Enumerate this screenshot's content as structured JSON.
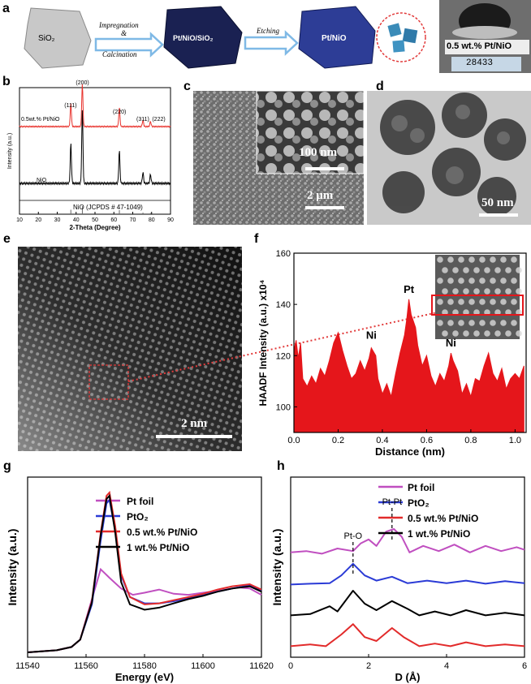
{
  "panels": {
    "a": {
      "label": "a",
      "sio2": "SiO₂",
      "step1a": "Impregnation",
      "step1b": "&",
      "step1c": "Calcination",
      "mid": "Pt/NiO/SiO₂",
      "step2": "Etching",
      "product": "Pt/NiO",
      "photo_label": "0.5 wt.% Pt/NiO",
      "scale_reading": "28433"
    },
    "b": {
      "label": "b"
    },
    "c": {
      "label": "c",
      "scale_big": "2 μm",
      "scale_inset": "100 nm"
    },
    "d": {
      "label": "d",
      "scale": "50 nm"
    },
    "e": {
      "label": "e",
      "scale": "2 nm"
    },
    "f": {
      "label": "f"
    },
    "g": {
      "label": "g"
    },
    "h": {
      "label": "h"
    }
  },
  "chart_data": [
    {
      "panel": "b",
      "type": "line",
      "xlabel": "2-Theta (Degree)",
      "ylabel": "Intensity (a.u.)",
      "xlim": [
        10,
        90
      ],
      "xticks": [
        10,
        20,
        30,
        40,
        50,
        60,
        70,
        80,
        90
      ],
      "series": [
        {
          "name": "0.5wt.% Pt/NiO",
          "color": "#e8322c",
          "peaks": [
            [
              37.2,
              0.55
            ],
            [
              43.3,
              1.0
            ],
            [
              62.9,
              0.45
            ],
            [
              75.4,
              0.15
            ],
            [
              79.4,
              0.12
            ]
          ]
        },
        {
          "name": "NiO",
          "color": "#000000",
          "peaks": [
            [
              37.2,
              0.55
            ],
            [
              43.3,
              1.0
            ],
            [
              62.9,
              0.45
            ],
            [
              75.4,
              0.15
            ],
            [
              79.4,
              0.12
            ]
          ]
        }
      ],
      "peak_labels": [
        "(111)",
        "(200)",
        "(220)",
        "(311)",
        "(222)"
      ],
      "reference": {
        "label": "NiO (JCPDS # 47-1049)",
        "lines": [
          37.2,
          43.3,
          62.9,
          75.4,
          79.4
        ],
        "heights": [
          0.55,
          1.0,
          0.5,
          0.2,
          0.15
        ]
      }
    },
    {
      "panel": "f",
      "type": "area",
      "xlabel": "Distance (nm)",
      "ylabel": "HAADF Intensity (a.u.) x10⁴",
      "xlim": [
        0,
        1.05
      ],
      "ylim": [
        90,
        160
      ],
      "xticks": [
        0.0,
        0.2,
        0.4,
        0.6,
        0.8,
        1.0
      ],
      "yticks": [
        100,
        120,
        140,
        160
      ],
      "color": "#e5161b",
      "annotations": [
        {
          "text": "Pt",
          "x": 0.52,
          "y": 142
        },
        {
          "text": "Ni",
          "x": 0.35,
          "y": 124
        },
        {
          "text": "Ni",
          "x": 0.71,
          "y": 121
        }
      ],
      "profile": [
        [
          0,
          122
        ],
        [
          0.01,
          126
        ],
        [
          0.02,
          119
        ],
        [
          0.03,
          125
        ],
        [
          0.04,
          111
        ],
        [
          0.06,
          108
        ],
        [
          0.08,
          112
        ],
        [
          0.1,
          109
        ],
        [
          0.12,
          115
        ],
        [
          0.14,
          112
        ],
        [
          0.16,
          118
        ],
        [
          0.18,
          125
        ],
        [
          0.2,
          129
        ],
        [
          0.22,
          122
        ],
        [
          0.24,
          116
        ],
        [
          0.26,
          111
        ],
        [
          0.28,
          113
        ],
        [
          0.3,
          118
        ],
        [
          0.32,
          114
        ],
        [
          0.34,
          119
        ],
        [
          0.35,
          123
        ],
        [
          0.37,
          120
        ],
        [
          0.38,
          111
        ],
        [
          0.4,
          105
        ],
        [
          0.42,
          109
        ],
        [
          0.44,
          104
        ],
        [
          0.46,
          113
        ],
        [
          0.48,
          121
        ],
        [
          0.5,
          128
        ],
        [
          0.51,
          134
        ],
        [
          0.52,
          142
        ],
        [
          0.53,
          136
        ],
        [
          0.55,
          131
        ],
        [
          0.56,
          124
        ],
        [
          0.58,
          116
        ],
        [
          0.6,
          120
        ],
        [
          0.62,
          112
        ],
        [
          0.64,
          108
        ],
        [
          0.66,
          113
        ],
        [
          0.68,
          110
        ],
        [
          0.7,
          116
        ],
        [
          0.71,
          121
        ],
        [
          0.72,
          118
        ],
        [
          0.74,
          114
        ],
        [
          0.76,
          105
        ],
        [
          0.78,
          109
        ],
        [
          0.8,
          104
        ],
        [
          0.82,
          111
        ],
        [
          0.84,
          110
        ],
        [
          0.86,
          116
        ],
        [
          0.88,
          121
        ],
        [
          0.89,
          117
        ],
        [
          0.9,
          113
        ],
        [
          0.92,
          110
        ],
        [
          0.94,
          115
        ],
        [
          0.96,
          107
        ],
        [
          0.98,
          111
        ],
        [
          1.0,
          113
        ],
        [
          1.02,
          111
        ],
        [
          1.04,
          116
        ]
      ]
    },
    {
      "panel": "g",
      "type": "line",
      "xlabel": "Energy (eV)",
      "ylabel": "Intensity (a.u.)",
      "xlim": [
        11540,
        11620
      ],
      "ylim": [
        0,
        1.6
      ],
      "xticks": [
        11540,
        11560,
        11580,
        11600,
        11620
      ],
      "series": [
        {
          "name": "Pt foil",
          "color": "#c04fc0",
          "points": [
            [
              11540,
              0.0
            ],
            [
              11550,
              0.02
            ],
            [
              11555,
              0.05
            ],
            [
              11558,
              0.12
            ],
            [
              11562,
              0.5
            ],
            [
              11565,
              0.78
            ],
            [
              11568,
              0.7
            ],
            [
              11572,
              0.6
            ],
            [
              11576,
              0.54
            ],
            [
              11580,
              0.56
            ],
            [
              11585,
              0.59
            ],
            [
              11590,
              0.55
            ],
            [
              11595,
              0.54
            ],
            [
              11600,
              0.56
            ],
            [
              11606,
              0.58
            ],
            [
              11612,
              0.61
            ],
            [
              11616,
              0.6
            ],
            [
              11620,
              0.54
            ]
          ]
        },
        {
          "name": "PtO₂",
          "color": "#2b3bd6",
          "points": [
            [
              11540,
              0.0
            ],
            [
              11550,
              0.02
            ],
            [
              11555,
              0.05
            ],
            [
              11558,
              0.12
            ],
            [
              11562,
              0.45
            ],
            [
              11565,
              1.05
            ],
            [
              11567,
              1.4
            ],
            [
              11568,
              1.43
            ],
            [
              11570,
              1.15
            ],
            [
              11572,
              0.72
            ],
            [
              11575,
              0.52
            ],
            [
              11580,
              0.46
            ],
            [
              11585,
              0.46
            ],
            [
              11590,
              0.48
            ],
            [
              11595,
              0.51
            ],
            [
              11600,
              0.54
            ],
            [
              11605,
              0.57
            ],
            [
              11610,
              0.6
            ],
            [
              11616,
              0.63
            ],
            [
              11620,
              0.58
            ]
          ]
        },
        {
          "name": "0.5 wt.% Pt/NiO",
          "color": "#e22b2b",
          "points": [
            [
              11540,
              0.0
            ],
            [
              11550,
              0.02
            ],
            [
              11555,
              0.05
            ],
            [
              11558,
              0.12
            ],
            [
              11562,
              0.48
            ],
            [
              11565,
              1.12
            ],
            [
              11567,
              1.47
            ],
            [
              11568,
              1.5
            ],
            [
              11570,
              1.18
            ],
            [
              11572,
              0.74
            ],
            [
              11575,
              0.52
            ],
            [
              11580,
              0.45
            ],
            [
              11585,
              0.46
            ],
            [
              11590,
              0.49
            ],
            [
              11595,
              0.52
            ],
            [
              11600,
              0.55
            ],
            [
              11605,
              0.59
            ],
            [
              11610,
              0.62
            ],
            [
              11616,
              0.64
            ],
            [
              11620,
              0.59
            ]
          ]
        },
        {
          "name": "1 wt.% Pt/NiO",
          "color": "#000000",
          "points": [
            [
              11540,
              0.0
            ],
            [
              11550,
              0.02
            ],
            [
              11555,
              0.05
            ],
            [
              11558,
              0.12
            ],
            [
              11562,
              0.47
            ],
            [
              11565,
              1.1
            ],
            [
              11567,
              1.44
            ],
            [
              11568,
              1.47
            ],
            [
              11570,
              1.12
            ],
            [
              11572,
              0.66
            ],
            [
              11575,
              0.45
            ],
            [
              11580,
              0.4
            ],
            [
              11585,
              0.42
            ],
            [
              11590,
              0.46
            ],
            [
              11595,
              0.5
            ],
            [
              11600,
              0.53
            ],
            [
              11605,
              0.57
            ],
            [
              11610,
              0.6
            ],
            [
              11616,
              0.62
            ],
            [
              11620,
              0.57
            ]
          ]
        }
      ]
    },
    {
      "panel": "h",
      "type": "line",
      "xlabel": "D (Å)",
      "ylabel": "Intensity (a.u.)",
      "xlim": [
        0,
        6
      ],
      "xticks": [
        0,
        2,
        4,
        6
      ],
      "annotations": [
        {
          "text": "Pt-O",
          "x": 1.6
        },
        {
          "text": "Pt-Pt",
          "x": 2.6
        }
      ],
      "series": [
        {
          "name": "Pt foil",
          "color": "#c04fc0",
          "offset": 3,
          "points": [
            [
              0,
              0.1
            ],
            [
              0.4,
              0.15
            ],
            [
              0.8,
              0.05
            ],
            [
              1.2,
              0.25
            ],
            [
              1.6,
              0.15
            ],
            [
              1.8,
              0.45
            ],
            [
              2.0,
              0.6
            ],
            [
              2.2,
              0.35
            ],
            [
              2.45,
              0.9
            ],
            [
              2.65,
              1.0
            ],
            [
              2.85,
              0.7
            ],
            [
              3.05,
              0.1
            ],
            [
              3.4,
              0.35
            ],
            [
              3.8,
              0.15
            ],
            [
              4.2,
              0.4
            ],
            [
              4.6,
              0.1
            ],
            [
              5.0,
              0.35
            ],
            [
              5.4,
              0.15
            ],
            [
              5.8,
              0.3
            ],
            [
              6.0,
              0.2
            ]
          ]
        },
        {
          "name": "PtO₂",
          "color": "#2b3bd6",
          "offset": 2,
          "points": [
            [
              0,
              0.05
            ],
            [
              0.5,
              0.08
            ],
            [
              1.0,
              0.1
            ],
            [
              1.3,
              0.4
            ],
            [
              1.6,
              0.85
            ],
            [
              1.9,
              0.4
            ],
            [
              2.2,
              0.2
            ],
            [
              2.6,
              0.35
            ],
            [
              3.0,
              0.1
            ],
            [
              3.5,
              0.2
            ],
            [
              4.0,
              0.1
            ],
            [
              4.5,
              0.2
            ],
            [
              5.0,
              0.08
            ],
            [
              5.5,
              0.18
            ],
            [
              6.0,
              0.1
            ]
          ]
        },
        {
          "name": "0.5 wt.% Pt/NiO",
          "color": "#e22b2b",
          "offset": 0,
          "points": [
            [
              0,
              0.05
            ],
            [
              0.5,
              0.12
            ],
            [
              0.9,
              0.05
            ],
            [
              1.3,
              0.5
            ],
            [
              1.6,
              0.9
            ],
            [
              1.9,
              0.4
            ],
            [
              2.2,
              0.25
            ],
            [
              2.6,
              0.75
            ],
            [
              2.9,
              0.4
            ],
            [
              3.3,
              0.05
            ],
            [
              3.7,
              0.15
            ],
            [
              4.1,
              0.05
            ],
            [
              4.5,
              0.2
            ],
            [
              5.0,
              0.05
            ],
            [
              5.5,
              0.12
            ],
            [
              6.0,
              0.05
            ]
          ]
        },
        {
          "name": "1 wt.% Pt/NiO",
          "color": "#000000",
          "offset": 1,
          "points": [
            [
              0,
              0.05
            ],
            [
              0.5,
              0.1
            ],
            [
              1.0,
              0.4
            ],
            [
              1.2,
              0.2
            ],
            [
              1.6,
              1.0
            ],
            [
              1.9,
              0.5
            ],
            [
              2.2,
              0.25
            ],
            [
              2.6,
              0.6
            ],
            [
              3.0,
              0.3
            ],
            [
              3.3,
              0.05
            ],
            [
              3.7,
              0.2
            ],
            [
              4.1,
              0.05
            ],
            [
              4.5,
              0.25
            ],
            [
              5.0,
              0.05
            ],
            [
              5.5,
              0.15
            ],
            [
              6.0,
              0.05
            ]
          ]
        }
      ]
    }
  ]
}
